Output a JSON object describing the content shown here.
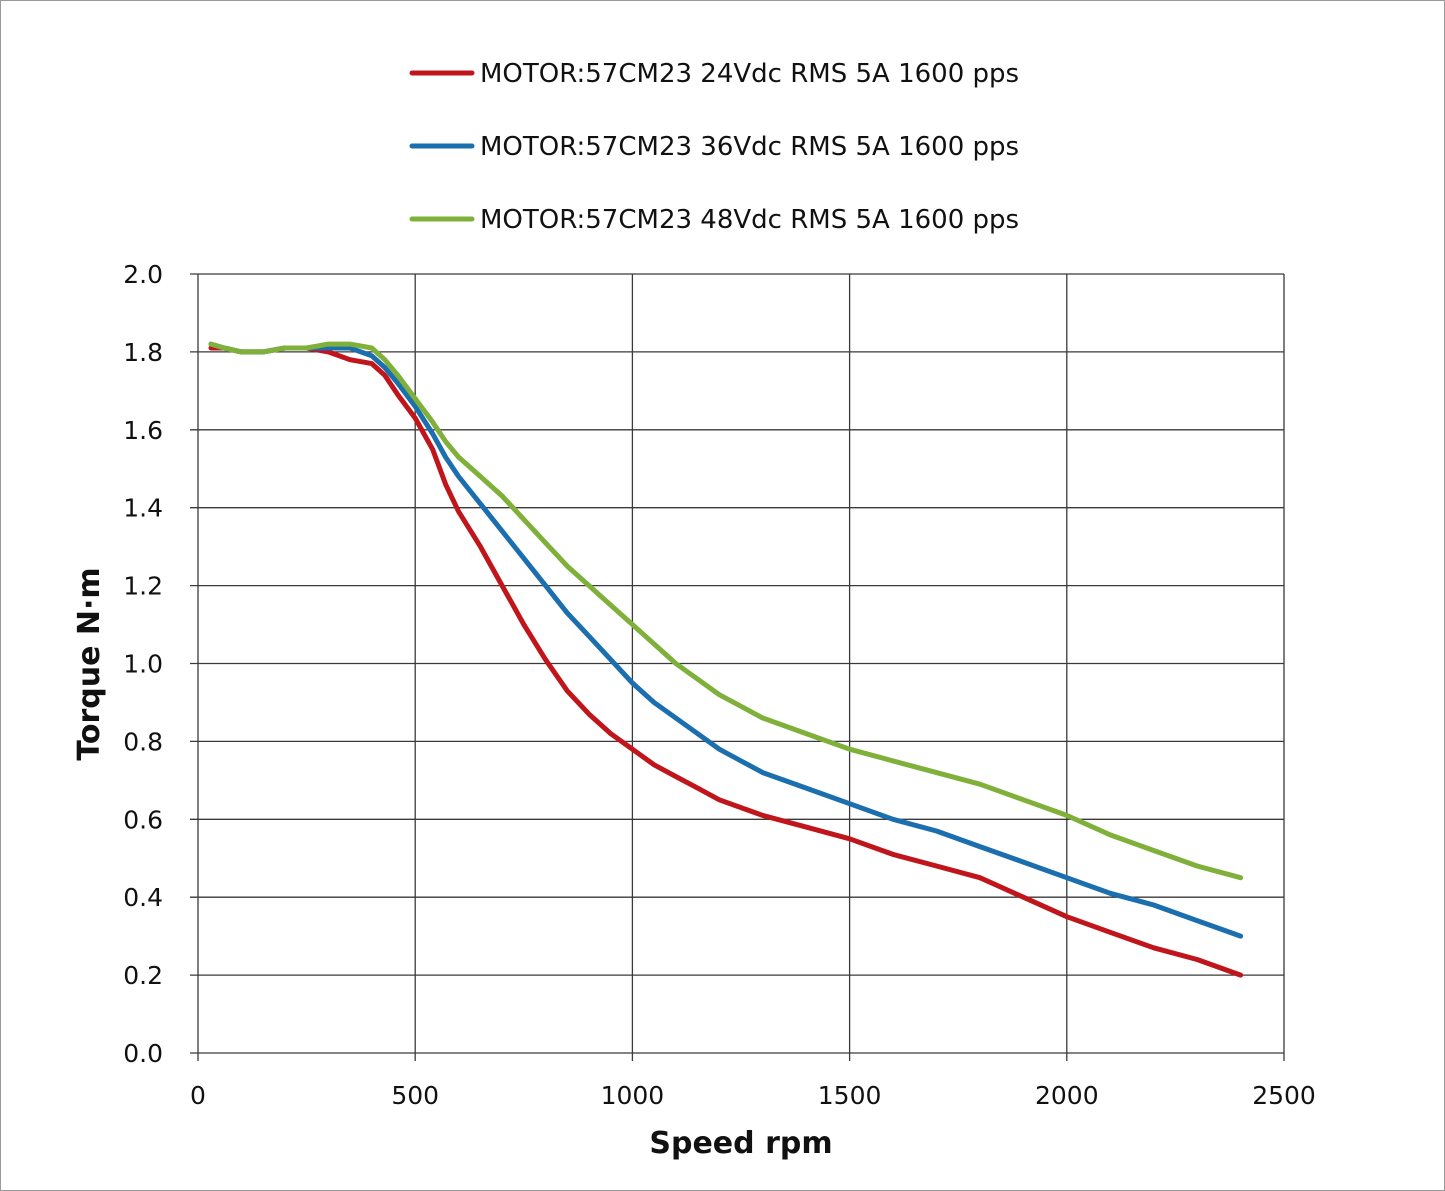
{
  "chart_data": {
    "type": "line",
    "xlabel": "Speed rpm",
    "ylabel": "Torque N·m",
    "xlim": [
      0,
      2500
    ],
    "ylim": [
      0,
      2.0
    ],
    "xticks": [
      0,
      500,
      1000,
      1500,
      2000,
      2500
    ],
    "xtick_labels": [
      "0",
      "500",
      "1000",
      "1500",
      "2000",
      "2500"
    ],
    "yticks": [
      0,
      0.2,
      0.4,
      0.6,
      0.8,
      1.0,
      1.2,
      1.4,
      1.6,
      1.8,
      2.0
    ],
    "ytick_labels": [
      "0.0",
      "0.2",
      "0.4",
      "0.6",
      "0.8",
      "1.0",
      "1.2",
      "1.4",
      "1.6",
      "1.8",
      "2.0"
    ],
    "grid": true,
    "legend_position": "top",
    "series": [
      {
        "name": "MOTOR:57CM23 24Vdc  RMS 5A  1600 pps",
        "color": "#c0161b",
        "x": [
          30,
          60,
          100,
          150,
          200,
          250,
          300,
          350,
          400,
          430,
          460,
          500,
          540,
          570,
          600,
          650,
          700,
          750,
          800,
          850,
          900,
          950,
          1000,
          1050,
          1100,
          1150,
          1200,
          1250,
          1300,
          1400,
          1500,
          1600,
          1700,
          1800,
          1900,
          2000,
          2100,
          2200,
          2300,
          2400
        ],
        "y": [
          1.81,
          1.81,
          1.8,
          1.8,
          1.81,
          1.81,
          1.8,
          1.78,
          1.77,
          1.74,
          1.69,
          1.63,
          1.55,
          1.46,
          1.39,
          1.3,
          1.2,
          1.1,
          1.01,
          0.93,
          0.87,
          0.82,
          0.78,
          0.74,
          0.71,
          0.68,
          0.65,
          0.63,
          0.61,
          0.58,
          0.55,
          0.51,
          0.48,
          0.45,
          0.4,
          0.35,
          0.31,
          0.27,
          0.24,
          0.2
        ]
      },
      {
        "name": "MOTOR:57CM23 36Vdc  RMS 5A  1600 pps",
        "color": "#1c6fae",
        "x": [
          30,
          60,
          100,
          150,
          200,
          250,
          300,
          350,
          400,
          430,
          460,
          500,
          540,
          570,
          600,
          650,
          700,
          750,
          800,
          850,
          900,
          950,
          1000,
          1050,
          1100,
          1150,
          1200,
          1250,
          1300,
          1400,
          1500,
          1600,
          1700,
          1800,
          1900,
          2000,
          2100,
          2200,
          2300,
          2400
        ],
        "y": [
          1.82,
          1.81,
          1.8,
          1.8,
          1.81,
          1.81,
          1.81,
          1.81,
          1.79,
          1.76,
          1.72,
          1.66,
          1.59,
          1.53,
          1.48,
          1.41,
          1.34,
          1.27,
          1.2,
          1.13,
          1.07,
          1.01,
          0.95,
          0.9,
          0.86,
          0.82,
          0.78,
          0.75,
          0.72,
          0.68,
          0.64,
          0.6,
          0.57,
          0.53,
          0.49,
          0.45,
          0.41,
          0.38,
          0.34,
          0.3
        ]
      },
      {
        "name": "MOTOR:57CM23 48Vdc  RMS 5A  1600 pps",
        "color": "#7fb03a",
        "x": [
          30,
          60,
          100,
          150,
          200,
          250,
          300,
          350,
          400,
          430,
          460,
          500,
          540,
          570,
          600,
          650,
          700,
          750,
          800,
          850,
          900,
          950,
          1000,
          1050,
          1100,
          1150,
          1200,
          1250,
          1300,
          1400,
          1500,
          1600,
          1700,
          1800,
          1900,
          2000,
          2100,
          2200,
          2300,
          2400
        ],
        "y": [
          1.82,
          1.81,
          1.8,
          1.8,
          1.81,
          1.81,
          1.82,
          1.82,
          1.81,
          1.78,
          1.74,
          1.68,
          1.62,
          1.57,
          1.53,
          1.48,
          1.43,
          1.37,
          1.31,
          1.25,
          1.2,
          1.15,
          1.1,
          1.05,
          1.0,
          0.96,
          0.92,
          0.89,
          0.86,
          0.82,
          0.78,
          0.75,
          0.72,
          0.69,
          0.65,
          0.61,
          0.56,
          0.52,
          0.48,
          0.45
        ]
      }
    ]
  }
}
